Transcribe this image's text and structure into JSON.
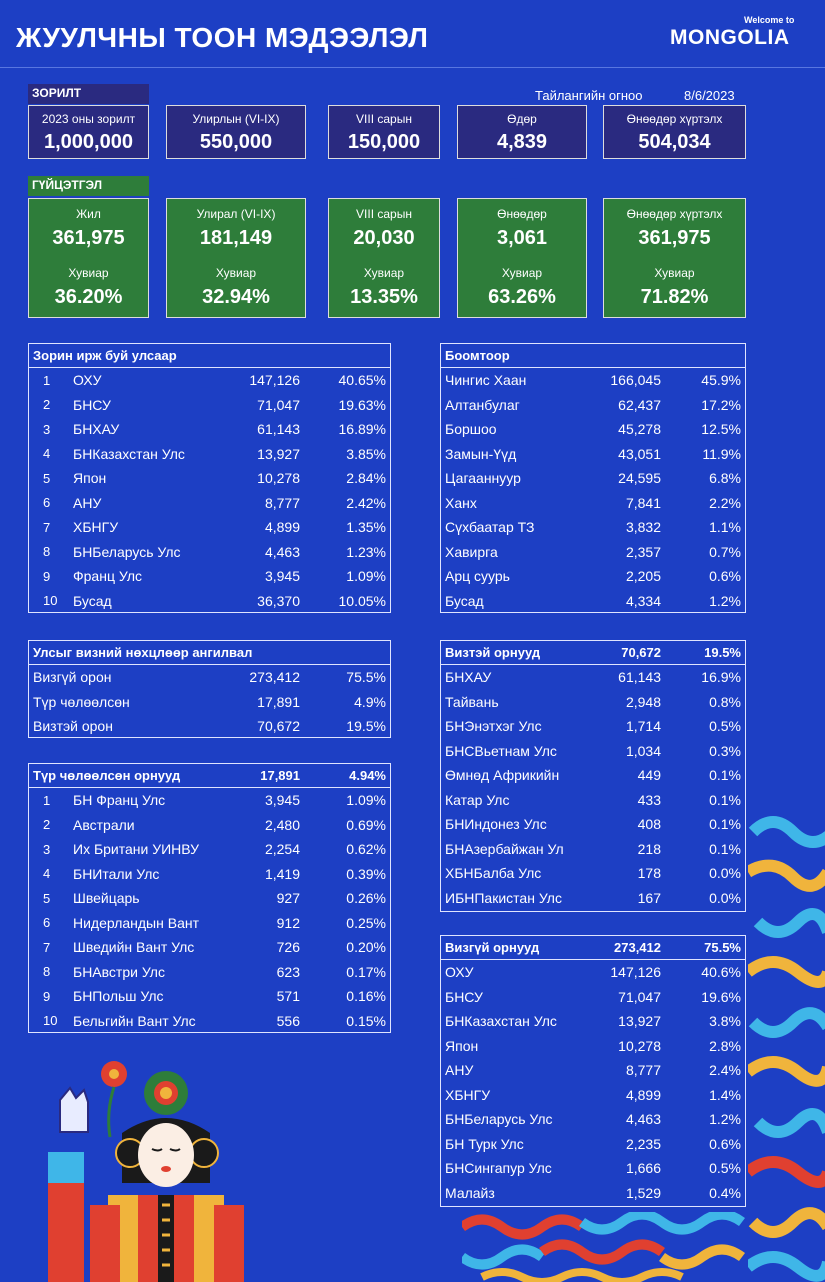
{
  "header": {
    "title": "ЖУУЛЧНЫ ТООН МЭДЭЭЛЭЛ",
    "brand_small": "Welcome to",
    "brand_big": "MONGOLIA"
  },
  "goal": {
    "tag": "ЗОРИЛТ",
    "report_label": "Тайлангийн огноо",
    "report_date": "8/6/2023",
    "boxes": [
      {
        "label": "2023 оны зорилт",
        "value": "1,000,000"
      },
      {
        "label": "Улирлын (VI-IX)",
        "value": "550,000"
      },
      {
        "label": "VIII сарын",
        "value": "150,000"
      },
      {
        "label": "Өдөр",
        "value": "4,839"
      },
      {
        "label": "Өнөөдөр хүртэлх",
        "value": "504,034"
      }
    ]
  },
  "achievement": {
    "tag": "ГҮЙЦЭТГЭЛ",
    "boxes": [
      {
        "label": "Жил",
        "value": "361,975",
        "label2": "Хувиар",
        "value2": "36.20%"
      },
      {
        "label": "Улирал (VI-IX)",
        "value": "181,149",
        "label2": "Хувиар",
        "value2": "32.94%"
      },
      {
        "label": "VIII сарын",
        "value": "20,030",
        "label2": "Хувиар",
        "value2": "13.35%"
      },
      {
        "label": "Өнөөдөр",
        "value": "3,061",
        "label2": "Хувиар",
        "value2": "63.26%"
      },
      {
        "label": "Өнөөдөр хүртэлх",
        "value": "361,975",
        "label2": "Хувиар",
        "value2": "71.82%"
      }
    ]
  },
  "countries": {
    "title": "Зорин ирж буй улсаар",
    "rows": [
      {
        "n": "1",
        "name": "ОХУ",
        "v": "147,126",
        "p": "40.65%"
      },
      {
        "n": "2",
        "name": "БНСУ",
        "v": "71,047",
        "p": "19.63%"
      },
      {
        "n": "3",
        "name": "БНХАУ",
        "v": "61,143",
        "p": "16.89%"
      },
      {
        "n": "4",
        "name": "БНКазахстан Улс",
        "v": "13,927",
        "p": "3.85%"
      },
      {
        "n": "5",
        "name": "Япон",
        "v": "10,278",
        "p": "2.84%"
      },
      {
        "n": "6",
        "name": "АНУ",
        "v": "8,777",
        "p": "2.42%"
      },
      {
        "n": "7",
        "name": "ХБНГУ",
        "v": "4,899",
        "p": "1.35%"
      },
      {
        "n": "8",
        "name": "БНБеларусь Улс",
        "v": "4,463",
        "p": "1.23%"
      },
      {
        "n": "9",
        "name": "Франц Улс",
        "v": "3,945",
        "p": "1.09%"
      },
      {
        "n": "10",
        "name": "Бусад",
        "v": "36,370",
        "p": "10.05%"
      }
    ]
  },
  "borders": {
    "title": "Боомтоор",
    "rows": [
      {
        "name": "Чингис Хаан",
        "v": "166,045",
        "p": "45.9%"
      },
      {
        "name": "Алтанбулаг",
        "v": "62,437",
        "p": "17.2%"
      },
      {
        "name": "Боршоо",
        "v": "45,278",
        "p": "12.5%"
      },
      {
        "name": "Замын-Үүд",
        "v": "43,051",
        "p": "11.9%"
      },
      {
        "name": "Цагааннуур",
        "v": "24,595",
        "p": "6.8%"
      },
      {
        "name": "Ханх",
        "v": "7,841",
        "p": "2.2%"
      },
      {
        "name": "Сүхбаатар ТЗ",
        "v": "3,832",
        "p": "1.1%"
      },
      {
        "name": "Хавирга",
        "v": "2,357",
        "p": "0.7%"
      },
      {
        "name": "Арц суурь",
        "v": "2,205",
        "p": "0.6%"
      },
      {
        "name": "Бусад",
        "v": "4,334",
        "p": "1.2%"
      }
    ]
  },
  "visa_type": {
    "title": "Улсыг визний нөхцлөөр ангилвал",
    "rows": [
      {
        "name": "Визгүй орон",
        "v": "273,412",
        "p": "75.5%"
      },
      {
        "name": "Түр чөлөөлсөн",
        "v": "17,891",
        "p": "4.9%"
      },
      {
        "name": "Визтэй орон",
        "v": "70,672",
        "p": "19.5%"
      }
    ]
  },
  "exempt": {
    "title": "Түр чөлөөлсөн орнууд",
    "total": "17,891",
    "total_p": "4.94%",
    "rows": [
      {
        "n": "1",
        "name": "БН Франц Улс",
        "v": "3,945",
        "p": "1.09%"
      },
      {
        "n": "2",
        "name": "Австрали",
        "v": "2,480",
        "p": "0.69%"
      },
      {
        "n": "3",
        "name": "Их Британи УИНВУ",
        "v": "2,254",
        "p": "0.62%"
      },
      {
        "n": "4",
        "name": "БНИтали Улс",
        "v": "1,419",
        "p": "0.39%"
      },
      {
        "n": "5",
        "name": "Швейцарь",
        "v": "927",
        "p": "0.26%"
      },
      {
        "n": "6",
        "name": "Нидерландын Вант",
        "v": "912",
        "p": "0.25%"
      },
      {
        "n": "7",
        "name": "Шведийн Вант Улс",
        "v": "726",
        "p": "0.20%"
      },
      {
        "n": "8",
        "name": "БНАвстри Улс",
        "v": "623",
        "p": "0.17%"
      },
      {
        "n": "9",
        "name": "БНПольш Улс",
        "v": "571",
        "p": "0.16%"
      },
      {
        "n": "10",
        "name": "Бельгийн Вант Улс",
        "v": "556",
        "p": "0.15%"
      }
    ]
  },
  "visa": {
    "title": "Визтэй орнууд",
    "total": "70,672",
    "total_p": "19.5%",
    "rows": [
      {
        "name": "БНХАУ",
        "v": "61,143",
        "p": "16.9%"
      },
      {
        "name": "Тайвань",
        "v": "2,948",
        "p": "0.8%"
      },
      {
        "name": "БНЭнэтхэг Улс",
        "v": "1,714",
        "p": "0.5%"
      },
      {
        "name": "БНСВьетнам Улс",
        "v": "1,034",
        "p": "0.3%"
      },
      {
        "name": "Өмнөд Африкийн",
        "v": "449",
        "p": "0.1%"
      },
      {
        "name": "Катар Улс",
        "v": "433",
        "p": "0.1%"
      },
      {
        "name": "БНИндонез Улс",
        "v": "408",
        "p": "0.1%"
      },
      {
        "name": "БНАзербайжан Ул",
        "v": "218",
        "p": "0.1%"
      },
      {
        "name": "ХБНБалба Улс",
        "v": "178",
        "p": "0.0%"
      },
      {
        "name": "ИБНПакистан Улс",
        "v": "167",
        "p": "0.0%"
      }
    ]
  },
  "visafree": {
    "title": "Визгүй орнууд",
    "total": "273,412",
    "total_p": "75.5%",
    "rows": [
      {
        "name": "ОХУ",
        "v": "147,126",
        "p": "40.6%"
      },
      {
        "name": "БНСУ",
        "v": "71,047",
        "p": "19.6%"
      },
      {
        "name": "БНКазахстан Улс",
        "v": "13,927",
        "p": "3.8%"
      },
      {
        "name": "Япон",
        "v": "10,278",
        "p": "2.8%"
      },
      {
        "name": "АНУ",
        "v": "8,777",
        "p": "2.4%"
      },
      {
        "name": "ХБНГУ",
        "v": "4,899",
        "p": "1.4%"
      },
      {
        "name": "БНБеларусь Улс",
        "v": "4,463",
        "p": "1.2%"
      },
      {
        "name": "БН Турк Улс",
        "v": "2,235",
        "p": "0.6%"
      },
      {
        "name": "БНСингапур Улс",
        "v": "1,666",
        "p": "0.5%"
      },
      {
        "name": "Малайз",
        "v": "1,529",
        "p": "0.4%"
      }
    ]
  }
}
